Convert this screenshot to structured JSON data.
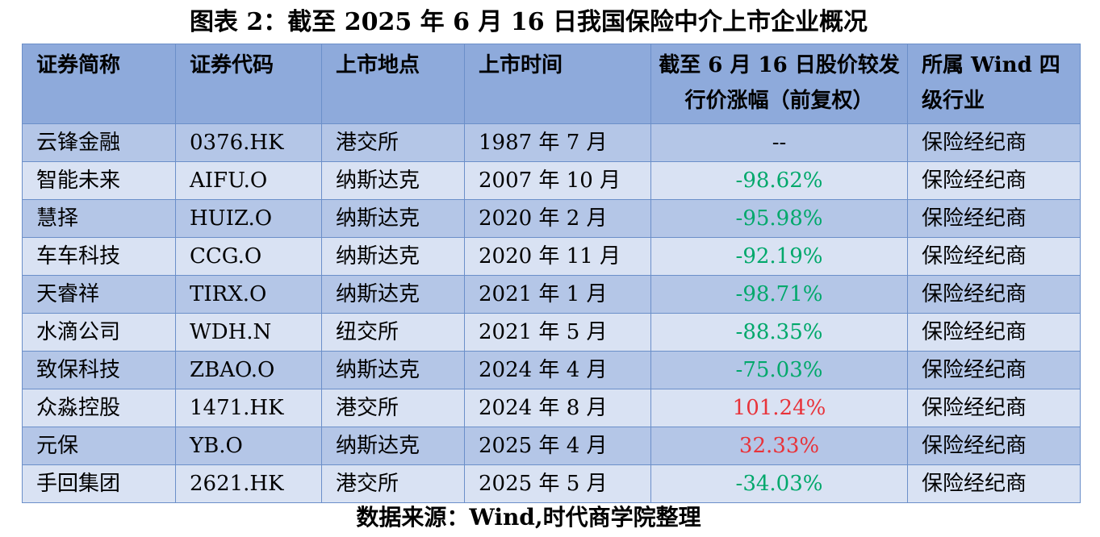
{
  "title": "图表 2：截至 2025 年 6 月 16 日我国保险中介上市企业概况",
  "table": {
    "headers": [
      "证券简称",
      "证券代码",
      "上市地点",
      "上市时间",
      "截至 6 月 16 日股价较发行价涨幅（前复权）",
      "所属 Wind 四级行业"
    ],
    "rows": [
      {
        "name": "云锋金融",
        "code": "0376.HK",
        "exchange": "港交所",
        "listing_date": "1987 年 7 月",
        "change": "--",
        "industry": "保险经纪商"
      },
      {
        "name": "智能未来",
        "code": "AIFU.O",
        "exchange": "纳斯达克",
        "listing_date": "2007 年 10 月",
        "change": "-98.62%",
        "industry": "保险经纪商"
      },
      {
        "name": "慧择",
        "code": "HUIZ.O",
        "exchange": "纳斯达克",
        "listing_date": "2020 年 2 月",
        "change": "-95.98%",
        "industry": "保险经纪商"
      },
      {
        "name": "车车科技",
        "code": "CCG.O",
        "exchange": "纳斯达克",
        "listing_date": "2020 年 11 月",
        "change": "-92.19%",
        "industry": "保险经纪商"
      },
      {
        "name": "天睿祥",
        "code": "TIRX.O",
        "exchange": "纳斯达克",
        "listing_date": "2021 年 1 月",
        "change": "-98.71%",
        "industry": "保险经纪商"
      },
      {
        "name": "水滴公司",
        "code": "WDH.N",
        "exchange": "纽交所",
        "listing_date": "2021 年 5 月",
        "change": "-88.35%",
        "industry": "保险经纪商"
      },
      {
        "name": "致保科技",
        "code": "ZBAO.O",
        "exchange": "纳斯达克",
        "listing_date": "2024 年 4 月",
        "change": "-75.03%",
        "industry": "保险经纪商"
      },
      {
        "name": "众淼控股",
        "code": "1471.HK",
        "exchange": "港交所",
        "listing_date": "2024 年 8 月",
        "change": "101.24%",
        "industry": "保险经纪商"
      },
      {
        "name": "元保",
        "code": "YB.O",
        "exchange": "纳斯达克",
        "listing_date": "2025 年 4 月",
        "change": "32.33%",
        "industry": "保险经纪商"
      },
      {
        "name": "手回集团",
        "code": "2621.HK",
        "exchange": "港交所",
        "listing_date": "2025 年 5 月",
        "change": "-34.03%",
        "industry": "保险经纪商"
      }
    ]
  },
  "source": "数据来源：Wind,时代商学院整理",
  "colors": {
    "header_bg": "#8eaadb",
    "row_odd_bg": "#b4c6e7",
    "row_even_bg": "#d9e2f3",
    "border": "#6b8fc9",
    "negative_change": "#00a86b",
    "positive_change": "#e8333a",
    "neutral_change": "#000000"
  }
}
